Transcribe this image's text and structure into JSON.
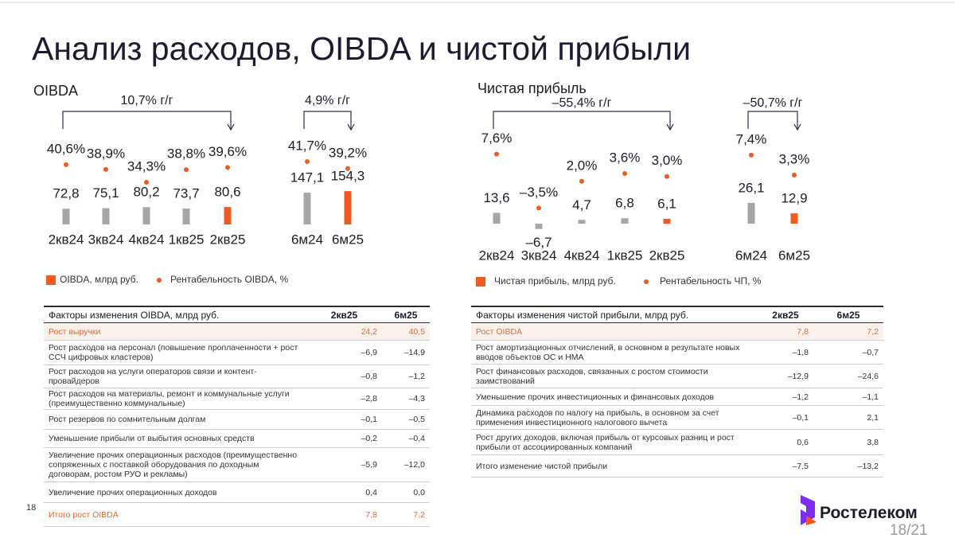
{
  "title": "Анализ расходов, OIBDA и чистой прибыли",
  "page_number": "18",
  "page_indicator": "18/21",
  "logo": "Ростелеком",
  "chart_data": [
    {
      "type": "bar_dot",
      "title": "OIBDA",
      "ylim": [
        0,
        450
      ],
      "y2lim": [
        0,
        50
      ],
      "series": [
        {
          "name": "OIBDA, млрд руб.",
          "color": "#f05a22"
        },
        {
          "name": "Рентабельность OIBDA, %",
          "color": "#f05a22"
        }
      ],
      "panels": [
        {
          "annotation": "10,7% г/г",
          "categories": [
            "2кв24",
            "3кв24",
            "4кв24",
            "1кв25",
            "2кв25"
          ],
          "values": [
            72.8,
            75.1,
            80.2,
            73.7,
            80.6
          ],
          "value_labels": [
            "72,8",
            "75,1",
            "80,2",
            "73,7",
            "80,6"
          ],
          "bar_colors": [
            "#a6a6a6",
            "#a6a6a6",
            "#a6a6a6",
            "#a6a6a6",
            "#f05a22"
          ],
          "dot_values": [
            40.6,
            38.9,
            34.3,
            38.8,
            39.6
          ],
          "dot_labels": [
            "40,6%",
            "38,9%",
            "34,3%",
            "38,8%",
            "39,6%"
          ]
        },
        {
          "annotation": "4,9% г/г",
          "categories": [
            "6м24",
            "6м25"
          ],
          "values": [
            147.1,
            154.3
          ],
          "value_labels": [
            "147,1",
            "154,3"
          ],
          "bar_colors": [
            "#a6a6a6",
            "#f05a22"
          ],
          "dot_values": [
            41.7,
            39.2
          ],
          "dot_labels": [
            "41,7%",
            "39,2%"
          ]
        }
      ]
    },
    {
      "type": "bar_dot",
      "title": "Чистая прибыль",
      "ylim": [
        -20,
        100
      ],
      "y2lim": [
        -10,
        10
      ],
      "series": [
        {
          "name": "Чистая прибыль, млрд руб.",
          "color": "#f05a22"
        },
        {
          "name": "Рентабельность ЧП, %",
          "color": "#f05a22"
        }
      ],
      "panels": [
        {
          "annotation": "–55,4% г/г",
          "categories": [
            "2кв24",
            "3кв24",
            "4кв24",
            "1кв25",
            "2кв25"
          ],
          "values": [
            13.6,
            -6.7,
            4.7,
            6.8,
            6.1
          ],
          "value_labels": [
            "13,6",
            "–6,7",
            "4,7",
            "6,8",
            "6,1"
          ],
          "bar_colors": [
            "#a6a6a6",
            "#a6a6a6",
            "#a6a6a6",
            "#a6a6a6",
            "#f05a22"
          ],
          "dot_values": [
            7.6,
            -3.5,
            2.0,
            3.6,
            3.0
          ],
          "dot_labels": [
            "7,6%",
            "–3,5%",
            "2,0%",
            "3,6%",
            "3,0%"
          ]
        },
        {
          "annotation": "–50,7% г/г",
          "categories": [
            "6м24",
            "6м25"
          ],
          "values": [
            26.1,
            12.9
          ],
          "value_labels": [
            "26,1",
            "12,9"
          ],
          "bar_colors": [
            "#a6a6a6",
            "#f05a22"
          ],
          "dot_values": [
            7.4,
            3.3
          ],
          "dot_labels": [
            "7,4%",
            "3,3%"
          ]
        }
      ]
    }
  ],
  "tables": [
    {
      "header": [
        "Факторы изменения OIBDA, млрд руб.",
        "2кв25",
        "6м25"
      ],
      "rows": [
        [
          "Рост выручки",
          "24,2",
          "40,5"
        ],
        [
          "Рост расходов на персонал (повышение проплаченности + рост ССЧ цифровых кластеров)",
          "–6,9",
          "–14,9"
        ],
        [
          "Рост расходов на услуги операторов связи и контент-провайдеров",
          "–0,8",
          "–1,2"
        ],
        [
          "Рост расходов на материалы, ремонт и коммунальные услуги (преимущественно коммунальные)",
          "–2,8",
          "–4,3"
        ],
        [
          "Рост резервов по сомнительным долгам",
          "–0,1",
          "–0,5"
        ],
        [
          "Уменьшение прибыли от выбытия основных средств",
          "–0,2",
          "–0,4"
        ],
        [
          "Увеличение прочих операционных расходов (преимущественно сопряженных с поставкой оборудования по доходным договорам, ростом РУО и рекламы)",
          "–5,9",
          "–12,0"
        ],
        [
          "Увеличение прочих операционных доходов",
          "0,4",
          "0,0"
        ],
        [
          "Итого рост OIBDA",
          "7,8",
          "7,2"
        ]
      ]
    },
    {
      "header": [
        "Факторы изменения чистой прибыли, млрд руб.",
        "2кв25",
        "6м25"
      ],
      "rows": [
        [
          "Рост OIBDA",
          "7,8",
          "7,2"
        ],
        [
          "Рост амортизационных отчислений, в основном в результате новых вводов объектов ОС и НМА",
          "–1,8",
          "–0,7"
        ],
        [
          "Рост финансовых расходов, связанных с ростом стоимости заимствований",
          "–12,9",
          "–24,6"
        ],
        [
          "Уменьшение прочих инвестиционных и финансовых доходов",
          "–1,2",
          "–1,1"
        ],
        [
          "Динамика расходов по налогу на прибыль, в основном за счет применения инвестиционного налогового вычета",
          "–0,1",
          "2,1"
        ],
        [
          "Рост других доходов, включая прибыль от курсовых разниц и рост прибыли от ассоциированных компаний",
          "0,6",
          "3,8"
        ],
        [
          "Итого изменение чистой прибыли",
          "–7,5",
          "–13,2"
        ]
      ]
    }
  ]
}
